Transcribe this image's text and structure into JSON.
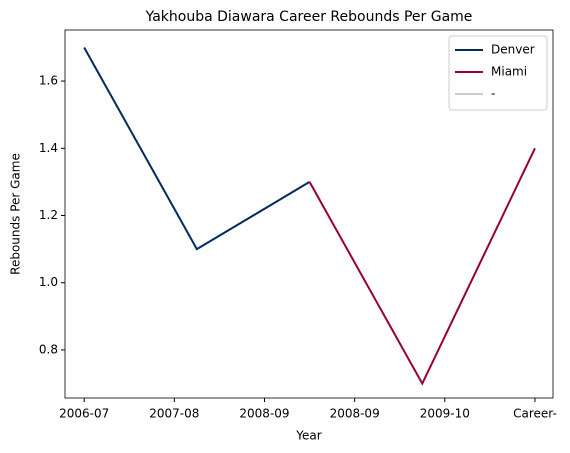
{
  "chart_data": {
    "type": "line",
    "title": "Yakhouba Diawara Career Rebounds Per Game",
    "xlabel": "Year",
    "ylabel": "Rebounds Per Game",
    "xlim": [
      -0.17,
      4.16
    ],
    "ylim": [
      0.657,
      1.752
    ],
    "xticks": [
      {
        "value": 0,
        "label": "2006-07"
      },
      {
        "value": 0.8,
        "label": "2007-08"
      },
      {
        "value": 1.6,
        "label": "2008-09"
      },
      {
        "value": 2.4,
        "label": "2008-09"
      },
      {
        "value": 3.2,
        "label": "2009-10"
      },
      {
        "value": 4,
        "label": "Career-"
      }
    ],
    "yticks": [
      {
        "value": 0.8,
        "label": "0.8"
      },
      {
        "value": 1.0,
        "label": "1.0"
      },
      {
        "value": 1.2,
        "label": "1.2"
      },
      {
        "value": 1.4,
        "label": "1.4"
      },
      {
        "value": 1.6,
        "label": "1.6"
      }
    ],
    "legend": "upper right",
    "series": [
      {
        "name": "Denver",
        "color": "#002b5c",
        "x": [
          0,
          1,
          2
        ],
        "values": [
          1.7,
          1.1,
          1.3
        ]
      },
      {
        "name": "Miami",
        "color": "#98002e",
        "x": [
          2,
          3,
          4
        ],
        "values": [
          1.3,
          0.7,
          1.4
        ]
      },
      {
        "name": "-",
        "color": "#c4ced4",
        "x": [],
        "values": []
      }
    ]
  }
}
